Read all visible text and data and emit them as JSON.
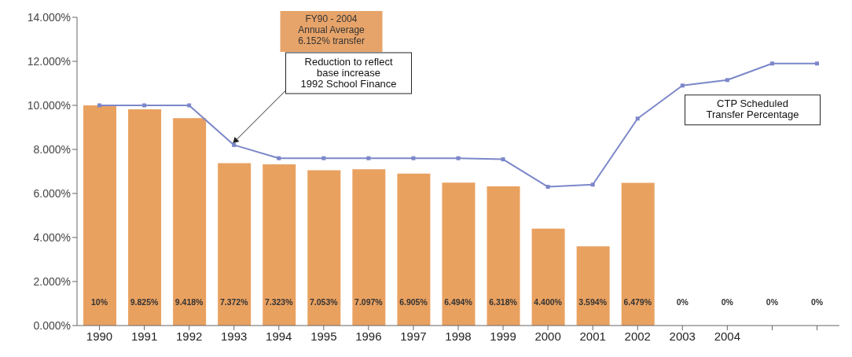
{
  "chart_data": {
    "type": "bar",
    "categories": [
      "1990",
      "1991",
      "1992",
      "1993",
      "1994",
      "1995",
      "1996",
      "1997",
      "1998",
      "1999",
      "2000",
      "2001",
      "2002",
      "2003",
      "2004",
      null,
      null
    ],
    "series": [
      {
        "color": "#e9a160",
        "values": [
          10,
          9.825,
          9.418,
          7.372,
          7.323,
          7.053,
          7.097,
          6.905,
          6.494,
          6.318,
          4.4,
          3.594,
          6.479,
          0,
          0,
          0,
          0
        ],
        "value_labels": [
          "10%",
          "9.825%",
          "9.418%",
          "7.372%",
          "7.323%",
          "7.053%",
          "7.097%",
          "6.905%",
          "6.494%",
          "6.318%",
          "4.400%",
          "3.594%",
          "6.479%",
          "0%",
          "0%",
          "0%",
          "0%"
        ]
      },
      {
        "type": "line",
        "name": "CTP Scheduled Transfer Percentage",
        "color": "#7c87c9",
        "marker": "square",
        "values": [
          10,
          10,
          10,
          8.2,
          7.6,
          7.6,
          7.6,
          7.6,
          7.6,
          7.55,
          6.3,
          6.4,
          9.4,
          10.9,
          11.15,
          11.9,
          11.9
        ]
      }
    ],
    "ylim": [
      0,
      14
    ],
    "yticks": [
      {
        "value": 0,
        "label": "0.000%"
      },
      {
        "value": 2,
        "label": "2.000%"
      },
      {
        "value": 4,
        "label": "4.000%"
      },
      {
        "value": 6,
        "label": "6.000%"
      },
      {
        "value": 8,
        "label": "8.000%"
      },
      {
        "value": 10,
        "label": "10.000%"
      },
      {
        "value": 12,
        "label": "12.000%"
      },
      {
        "value": 14,
        "label": "14.000%"
      }
    ],
    "grid": false,
    "legend": false,
    "annotations": [
      "FY90 - 2004\nAnnual Average\n6.152% transfer",
      "Reduction to reflect\nbase increase\n1992 School Finance"
    ]
  }
}
